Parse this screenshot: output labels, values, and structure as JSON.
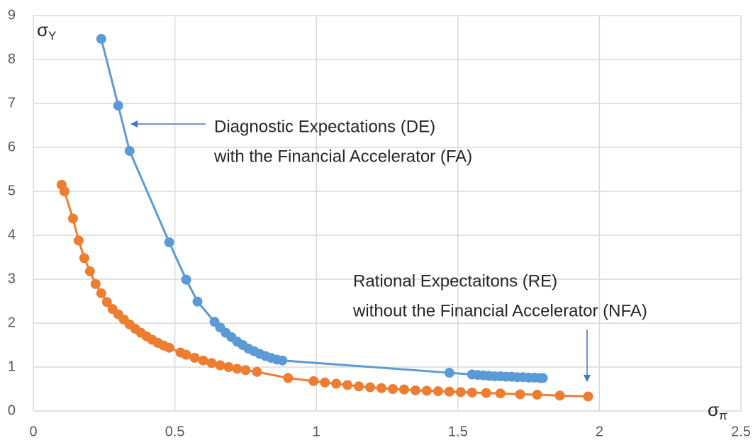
{
  "chart_data": {
    "type": "line",
    "ylabel": {
      "symbol": "σ",
      "subscript": "Y"
    },
    "xlabel": {
      "symbol": "σ",
      "subscript": "π"
    },
    "xlim": [
      0,
      2.5
    ],
    "xticks": [
      0,
      0.5,
      1,
      1.5,
      2,
      2.5
    ],
    "ylim": [
      0,
      9
    ],
    "yticks": [
      0,
      1,
      2,
      3,
      4,
      5,
      6,
      7,
      8,
      9
    ],
    "grid": true,
    "series": [
      {
        "color": "#5b9bd5",
        "x": [
          0.24,
          0.3,
          0.34,
          0.48,
          0.54,
          0.58,
          0.64,
          0.66,
          0.68,
          0.7,
          0.72,
          0.74,
          0.76,
          0.78,
          0.8,
          0.82,
          0.84,
          0.86,
          0.88,
          1.47,
          1.55,
          1.57,
          1.59,
          1.61,
          1.63,
          1.65,
          1.67,
          1.69,
          1.71,
          1.73,
          1.75,
          1.77,
          1.79,
          1.8
        ],
        "values": [
          8.47,
          6.95,
          5.92,
          3.84,
          2.99,
          2.49,
          2.03,
          1.9,
          1.78,
          1.68,
          1.58,
          1.5,
          1.42,
          1.36,
          1.3,
          1.25,
          1.21,
          1.17,
          1.15,
          0.87,
          0.83,
          0.82,
          0.81,
          0.8,
          0.79,
          0.79,
          0.78,
          0.78,
          0.77,
          0.77,
          0.76,
          0.76,
          0.75,
          0.75
        ]
      },
      {
        "color": "#ed7d31",
        "x": [
          0.1,
          0.11,
          0.14,
          0.16,
          0.18,
          0.2,
          0.22,
          0.24,
          0.26,
          0.28,
          0.3,
          0.32,
          0.34,
          0.36,
          0.38,
          0.4,
          0.42,
          0.44,
          0.46,
          0.48,
          0.52,
          0.54,
          0.57,
          0.6,
          0.63,
          0.66,
          0.69,
          0.72,
          0.75,
          0.79,
          0.9,
          0.99,
          1.03,
          1.07,
          1.11,
          1.15,
          1.19,
          1.23,
          1.27,
          1.31,
          1.35,
          1.39,
          1.43,
          1.47,
          1.51,
          1.55,
          1.6,
          1.65,
          1.72,
          1.78,
          1.86,
          1.96
        ],
        "values": [
          5.15,
          5.0,
          4.38,
          3.88,
          3.48,
          3.18,
          2.89,
          2.68,
          2.48,
          2.32,
          2.2,
          2.08,
          1.97,
          1.87,
          1.78,
          1.7,
          1.62,
          1.55,
          1.49,
          1.44,
          1.33,
          1.28,
          1.21,
          1.15,
          1.09,
          1.04,
          1.0,
          0.96,
          0.93,
          0.89,
          0.75,
          0.68,
          0.65,
          0.62,
          0.59,
          0.56,
          0.54,
          0.52,
          0.5,
          0.49,
          0.47,
          0.46,
          0.45,
          0.44,
          0.43,
          0.42,
          0.41,
          0.4,
          0.38,
          0.37,
          0.35,
          0.33
        ]
      }
    ],
    "annotations": [
      {
        "lines": [
          "Diagnostic Expectations (DE)",
          "with the Financial Accelerator (FA)"
        ]
      },
      {
        "lines": [
          "Rational Expectaitons (RE)",
          "without the Financial Accelerator (NFA)"
        ]
      }
    ]
  }
}
